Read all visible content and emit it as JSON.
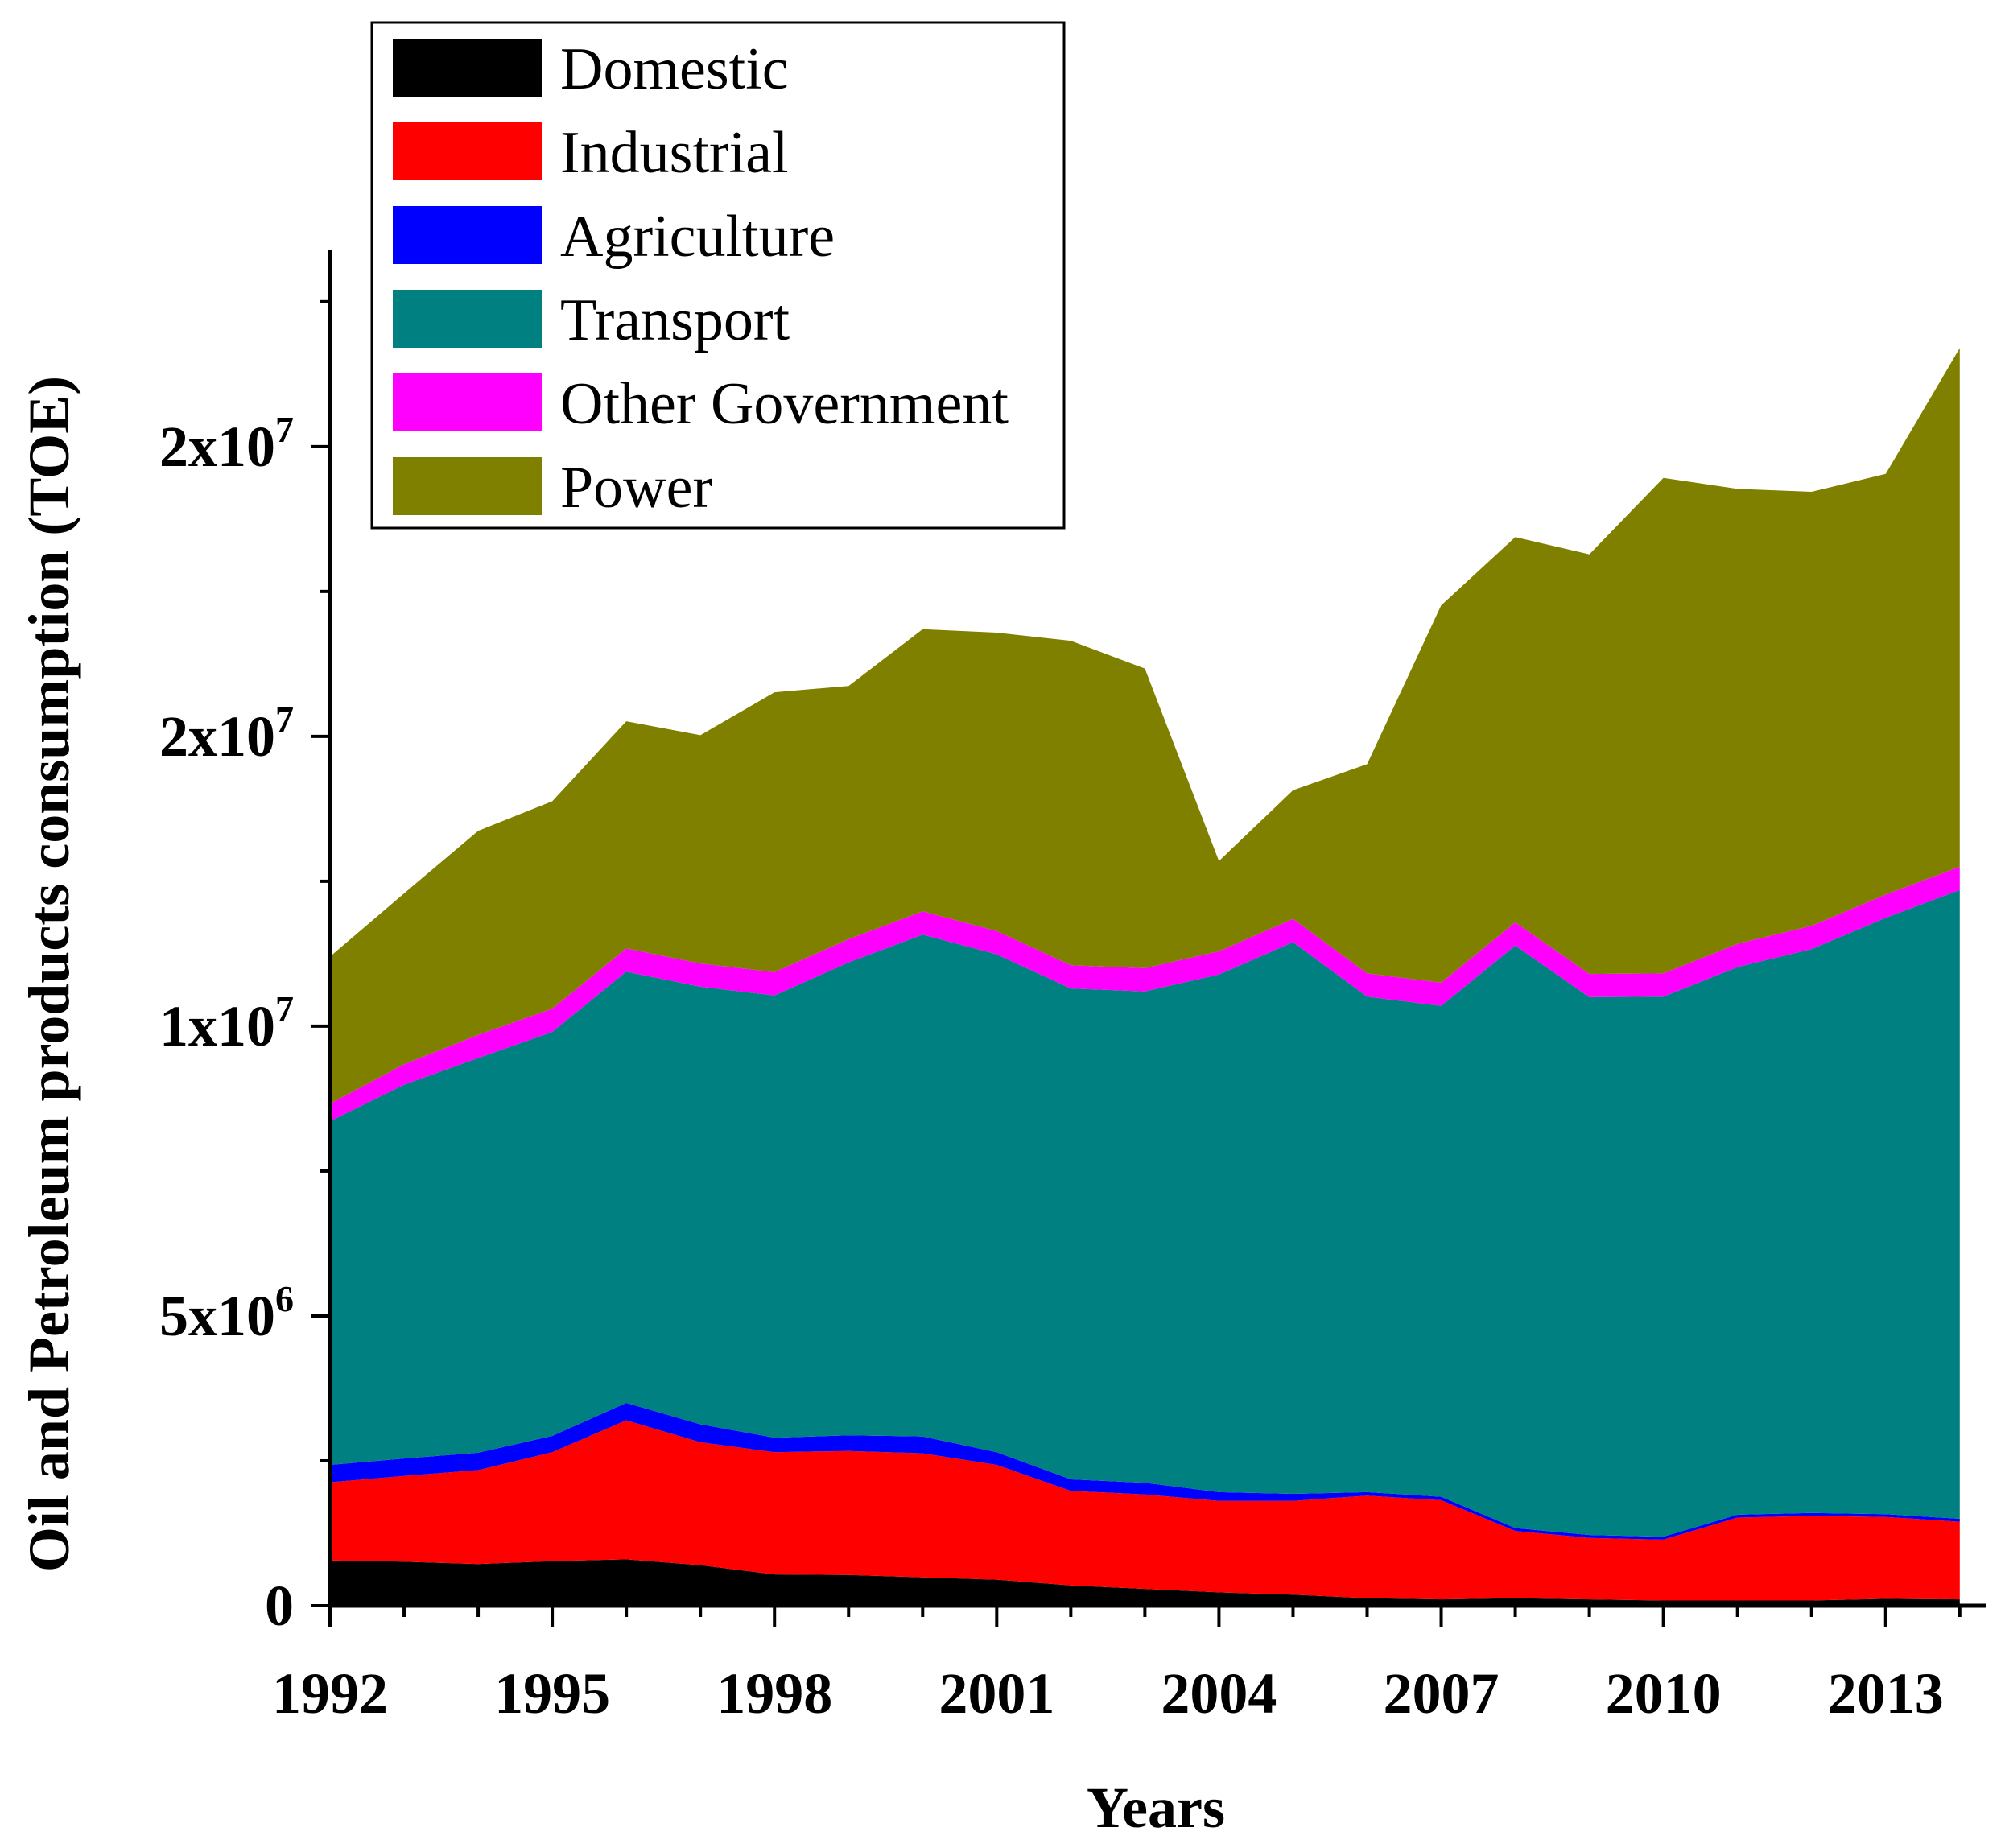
{
  "chart_data": {
    "type": "area",
    "stacked": true,
    "title": "",
    "xlabel": "Years",
    "ylabel": "Oil and Petroleum products consumption (TOE)",
    "x": [
      1992,
      1993,
      1994,
      1995,
      1996,
      1997,
      1998,
      1999,
      2000,
      2001,
      2002,
      2003,
      2004,
      2005,
      2006,
      2007,
      2008,
      2009,
      2010,
      2011,
      2012,
      2013,
      2014
    ],
    "xlim": [
      1992,
      2014.35
    ],
    "ylim": [
      0,
      23400000
    ],
    "x_ticks": [
      1992,
      1995,
      1998,
      2001,
      2004,
      2007,
      2010,
      2013
    ],
    "x_tick_labels": [
      "1992",
      "1995",
      "1998",
      "2001",
      "2004",
      "2007",
      "2010",
      "2013"
    ],
    "y_ticks": [
      0,
      5000000,
      10000000,
      15000000,
      20000000
    ],
    "y_tick_labels": [
      {
        "base": "0",
        "exp": ""
      },
      {
        "base": "5x10",
        "exp": "6"
      },
      {
        "base": "1x10",
        "exp": "7"
      },
      {
        "base": "2x10",
        "exp": "7"
      },
      {
        "base": "2x10",
        "exp": "7"
      }
    ],
    "series": [
      {
        "name": "Domestic",
        "color": "#000000",
        "values": [
          780000,
          760000,
          720000,
          770000,
          800000,
          700000,
          540000,
          530000,
          490000,
          450000,
          350000,
          290000,
          230000,
          190000,
          130000,
          110000,
          130000,
          110000,
          90000,
          90000,
          90000,
          120000,
          110000
        ]
      },
      {
        "name": "Industrial",
        "color": "#ff0000",
        "values": [
          1350000,
          1480000,
          1620000,
          1880000,
          2400000,
          2120000,
          2110000,
          2140000,
          2140000,
          1980000,
          1630000,
          1630000,
          1580000,
          1620000,
          1770000,
          1710000,
          1160000,
          1060000,
          1050000,
          1430000,
          1460000,
          1410000,
          1340000
        ]
      },
      {
        "name": "Agriculture",
        "color": "#0000ff",
        "values": [
          300000,
          300000,
          300000,
          280000,
          300000,
          310000,
          250000,
          270000,
          290000,
          220000,
          200000,
          200000,
          150000,
          120000,
          60000,
          60000,
          50000,
          50000,
          50000,
          50000,
          50000,
          50000,
          50000
        ]
      },
      {
        "name": "Transport",
        "color": "#008080",
        "values": [
          5930000,
          6450000,
          6810000,
          6970000,
          7440000,
          7550000,
          7630000,
          8160000,
          8660000,
          8590000,
          8470000,
          8480000,
          8930000,
          9520000,
          8550000,
          8470000,
          10050000,
          9280000,
          9320000,
          9450000,
          9730000,
          10290000,
          10850000
        ]
      },
      {
        "name": "Other Government",
        "color": "#ff00ff",
        "values": [
          300000,
          350000,
          400000,
          400000,
          400000,
          400000,
          400000,
          400000,
          400000,
          400000,
          400000,
          400000,
          400000,
          400000,
          400000,
          400000,
          400000,
          400000,
          400000,
          400000,
          400000,
          400000,
          400000
        ]
      },
      {
        "name": "Power",
        "color": "#808000",
        "values": [
          2540000,
          2950000,
          3520000,
          3580000,
          3920000,
          3940000,
          4830000,
          4370000,
          4870000,
          5150000,
          5600000,
          5170000,
          1560000,
          2220000,
          3610000,
          6510000,
          6650000,
          7240000,
          8550000,
          7850000,
          7490000,
          7260000,
          8950000
        ]
      }
    ],
    "legend": {
      "position": "top-left",
      "entries": [
        "Domestic",
        "Industrial",
        "Agriculture",
        "Transport",
        "Other Government",
        "Power"
      ]
    }
  }
}
